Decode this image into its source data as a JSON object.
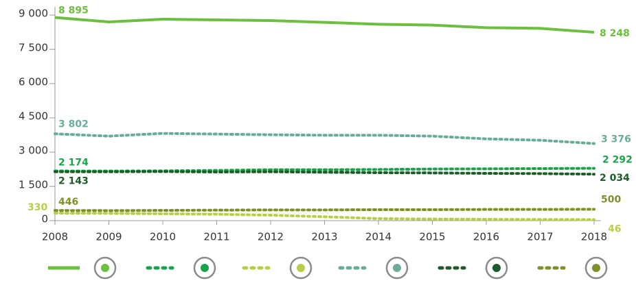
{
  "chart_data": {
    "type": "line",
    "x": [
      2008,
      2009,
      2010,
      2011,
      2012,
      2013,
      2014,
      2015,
      2016,
      2017,
      2018
    ],
    "xlim": [
      2008,
      2018
    ],
    "xticks": [
      2008,
      2009,
      2010,
      2011,
      2012,
      2013,
      2014,
      2015,
      2016,
      2017,
      2018
    ],
    "ylim": [
      0,
      9000
    ],
    "yticks": [
      0,
      {
        "value": 1500,
        "label": "1 500"
      },
      {
        "value": 3000,
        "label": "3 000"
      },
      {
        "value": 4500,
        "label": "4 500"
      },
      {
        "value": 6000,
        "label": "6 000"
      },
      {
        "value": 7500,
        "label": "7 500"
      },
      {
        "value": 9000,
        "label": "9 000"
      }
    ],
    "series": [
      {
        "color": "#6cbf3f",
        "dash": "solid",
        "values": [
          8895,
          8700,
          8820,
          8790,
          8760,
          8680,
          8600,
          8560,
          8450,
          8420,
          8248
        ],
        "value_labels": [
          "8 895",
          null,
          null,
          null,
          null,
          null,
          null,
          null,
          null,
          null,
          "8 248"
        ]
      },
      {
        "color": "#1aa34a",
        "dash": "dotted",
        "values": [
          2174,
          2170,
          2180,
          2200,
          2230,
          2230,
          2240,
          2260,
          2270,
          2280,
          2292
        ],
        "value_labels": [
          "2 174",
          null,
          null,
          null,
          null,
          null,
          null,
          null,
          null,
          null,
          "2 292"
        ]
      },
      {
        "color": "#b5cf4a",
        "dash": "dotted",
        "values": [
          330,
          320,
          300,
          280,
          240,
          170,
          90,
          70,
          60,
          50,
          46
        ],
        "value_labels": [
          "330",
          null,
          null,
          null,
          null,
          null,
          null,
          null,
          null,
          null,
          "46"
        ]
      },
      {
        "color": "#6aab9c",
        "dash": "dotted",
        "values": [
          3802,
          3700,
          3820,
          3790,
          3760,
          3740,
          3740,
          3700,
          3580,
          3520,
          3376
        ],
        "value_labels": [
          "3 802",
          null,
          null,
          null,
          null,
          null,
          null,
          null,
          null,
          null,
          "3 376"
        ]
      },
      {
        "color": "#1e5b2a",
        "dash": "dotted",
        "values": [
          2143,
          2140,
          2150,
          2130,
          2140,
          2120,
          2100,
          2090,
          2070,
          2060,
          2034
        ],
        "value_labels": [
          "2 143",
          null,
          null,
          null,
          null,
          null,
          null,
          null,
          null,
          null,
          "2 034"
        ]
      },
      {
        "color": "#7f8f2a",
        "dash": "dotted",
        "values": [
          446,
          440,
          450,
          460,
          470,
          470,
          480,
          480,
          490,
          490,
          500
        ],
        "value_labels": [
          "446",
          null,
          null,
          null,
          null,
          null,
          null,
          null,
          null,
          null,
          "500"
        ]
      }
    ]
  }
}
